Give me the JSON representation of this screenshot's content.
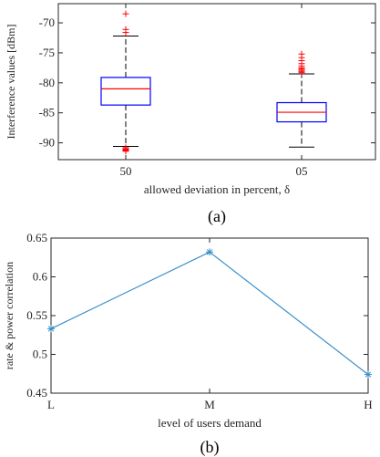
{
  "chart_data": [
    {
      "type": "box",
      "caption": "(a)",
      "ylabel": "Interference values [dBm]",
      "xlabel": "allowed deviation in percent, δ",
      "ylim": [
        -92.8,
        -66.8
      ],
      "yticks": [
        -90,
        -85,
        -80,
        -75,
        -70
      ],
      "ytick_labels": [
        "-90",
        "-85",
        "-80",
        "-75",
        "-70"
      ],
      "categories": [
        "50",
        "05"
      ],
      "boxes": [
        {
          "name": "50",
          "whisker_low": -90.6,
          "q1": -83.7,
          "median": -81.0,
          "q3": -79.1,
          "whisker_high": -72.2,
          "outliers": [
            -68.5,
            -71.1,
            -71.6,
            -90.8,
            -91.0,
            -91.1,
            -91.2,
            -91.3,
            -91.4
          ]
        },
        {
          "name": "05",
          "whisker_low": -90.7,
          "q1": -86.5,
          "median": -84.9,
          "q3": -83.3,
          "whisker_high": -78.5,
          "outliers": [
            -75.2,
            -75.8,
            -76.3,
            -76.8,
            -77.2,
            -77.5,
            -77.7,
            -77.9,
            -78.1,
            -78.3
          ]
        }
      ],
      "colors": {
        "box": "#0000ff",
        "median": "#ff0000",
        "whisker": "#000000",
        "outlier": "#ff0000"
      }
    },
    {
      "type": "line",
      "caption": "(b)",
      "ylabel": "rate & power correlation",
      "xlabel": "level of users demand",
      "categories": [
        "L",
        "M",
        "H"
      ],
      "values": [
        0.533,
        0.632,
        0.474
      ],
      "ylim": [
        0.45,
        0.65
      ],
      "yticks": [
        0.45,
        0.5,
        0.55,
        0.6,
        0.65
      ],
      "ytick_labels": [
        "0.45",
        "0.5",
        "0.55",
        "0.6",
        "0.65"
      ],
      "colors": {
        "line": "#3a8fc8",
        "marker": "#3a8fc8"
      }
    }
  ]
}
